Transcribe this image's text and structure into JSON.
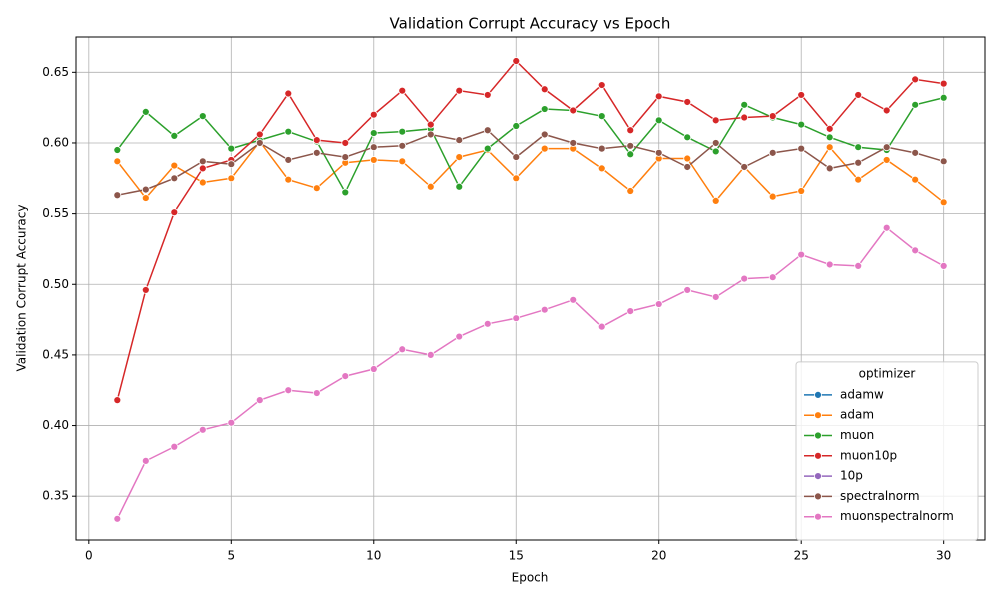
{
  "chart_data": {
    "type": "line",
    "title": "Validation Corrupt Accuracy vs Epoch",
    "x_label": "Epoch",
    "y_label": "Validation Corrupt Accuracy",
    "legend_title": "optimizer",
    "legend_position": "lower right",
    "grid": true,
    "x": [
      1,
      2,
      3,
      4,
      5,
      6,
      7,
      8,
      9,
      10,
      11,
      12,
      13,
      14,
      15,
      16,
      17,
      18,
      19,
      20,
      21,
      22,
      23,
      24,
      25,
      26,
      27,
      28,
      29,
      30
    ],
    "xlim": [
      -0.45,
      31.45
    ],
    "xticks": [
      0,
      5,
      10,
      15,
      20,
      25,
      30
    ],
    "ylim": [
      0.319,
      0.675
    ],
    "yticks": [
      0.35,
      {
        "value": 0.4,
        "label": "0.40"
      },
      0.45,
      {
        "value": 0.5,
        "label": "0.50"
      },
      0.55,
      {
        "value": 0.6,
        "label": "0.60"
      },
      0.65
    ],
    "series": [
      {
        "name": "adamw",
        "color": "#1f77b4",
        "values": [
          null,
          null,
          null,
          null,
          null,
          null,
          null,
          null,
          null,
          null,
          null,
          null,
          null,
          null,
          null,
          null,
          null,
          null,
          null,
          null,
          null,
          null,
          null,
          null,
          null,
          null,
          null,
          null,
          null,
          null
        ]
      },
      {
        "name": "adam",
        "color": "#ff7f0e",
        "values": [
          0.587,
          0.561,
          0.584,
          0.572,
          0.575,
          0.601,
          0.574,
          0.568,
          0.586,
          0.588,
          0.587,
          0.569,
          0.59,
          0.595,
          0.575,
          0.596,
          0.596,
          0.582,
          0.566,
          0.589,
          0.589,
          0.559,
          0.583,
          0.562,
          0.566,
          0.597,
          0.574,
          0.588,
          0.574,
          0.558
        ]
      },
      {
        "name": "muon",
        "color": "#2ca02c",
        "values": [
          0.595,
          0.622,
          0.605,
          0.619,
          0.596,
          0.602,
          0.608,
          0.601,
          0.565,
          0.607,
          0.608,
          0.61,
          0.569,
          0.596,
          0.612,
          0.624,
          0.623,
          0.619,
          0.592,
          0.616,
          0.604,
          0.594,
          0.627,
          0.618,
          0.613,
          0.604,
          0.597,
          0.595,
          0.627,
          0.632
        ]
      },
      {
        "name": "muon10p",
        "color": "#d62728",
        "values": [
          0.418,
          0.496,
          0.551,
          0.582,
          0.588,
          0.606,
          0.635,
          0.602,
          0.6,
          0.62,
          0.637,
          0.613,
          0.637,
          0.634,
          0.658,
          0.638,
          0.623,
          0.641,
          0.609,
          0.633,
          0.629,
          0.616,
          0.618,
          0.619,
          0.634,
          0.61,
          0.634,
          0.623,
          0.645,
          0.642
        ]
      },
      {
        "name": "10p",
        "color": "#9467bd",
        "values": [
          null,
          null,
          null,
          null,
          null,
          null,
          null,
          null,
          null,
          null,
          null,
          null,
          null,
          null,
          null,
          null,
          null,
          null,
          null,
          null,
          null,
          null,
          null,
          null,
          null,
          null,
          null,
          null,
          null,
          null
        ]
      },
      {
        "name": "spectralnorm",
        "color": "#8c564b",
        "values": [
          0.563,
          0.567,
          0.575,
          0.587,
          0.585,
          0.6,
          0.588,
          0.593,
          0.59,
          0.597,
          0.598,
          0.606,
          0.602,
          0.609,
          0.59,
          0.606,
          0.6,
          0.596,
          0.598,
          0.593,
          0.583,
          0.6,
          0.583,
          0.593,
          0.596,
          0.582,
          0.586,
          0.597,
          0.593,
          0.587
        ]
      },
      {
        "name": "muonspectralnorm",
        "color": "#e377c2",
        "values": [
          0.334,
          0.375,
          0.385,
          0.397,
          0.402,
          0.418,
          0.425,
          0.423,
          0.435,
          0.44,
          0.454,
          0.45,
          0.463,
          0.472,
          0.476,
          0.482,
          0.489,
          0.47,
          0.481,
          0.486,
          0.496,
          0.491,
          0.504,
          0.505,
          0.521,
          0.514,
          0.513,
          0.54,
          0.524,
          0.513
        ]
      }
    ]
  }
}
